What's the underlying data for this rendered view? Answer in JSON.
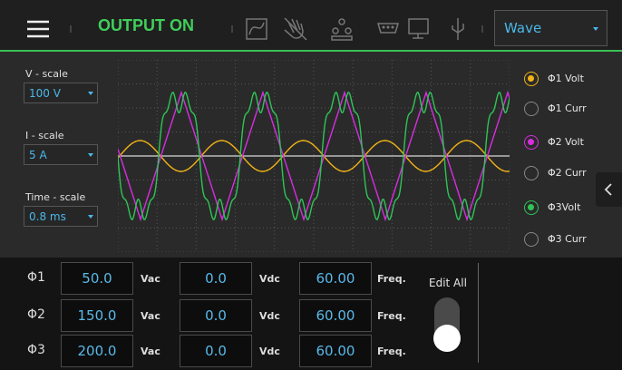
{
  "header": {
    "status": "OUTPUT ON",
    "view": "Wave"
  },
  "scales": [
    {
      "label": "V - scale",
      "value": "100 V"
    },
    {
      "label": "I - scale",
      "value": "5 A"
    },
    {
      "label": "Time - scale",
      "value": "0.8 ms"
    }
  ],
  "channels": [
    {
      "label": "Φ1 Volt",
      "selected": true,
      "color": "#f2b416"
    },
    {
      "label": "Φ1 Curr",
      "selected": false,
      "color": "#f2b416"
    },
    {
      "label": "Φ2 Volt",
      "selected": true,
      "color": "#d62ee0"
    },
    {
      "label": "Φ2 Curr",
      "selected": false,
      "color": "#d62ee0"
    },
    {
      "label": "Φ3Volt",
      "selected": true,
      "color": "#2fc455"
    },
    {
      "label": "Φ3 Curr",
      "selected": false,
      "color": "#2fc455"
    }
  ],
  "phases": [
    {
      "label": "Φ1",
      "ac": "50.0",
      "ac_unit": "Vac",
      "dc": "0.0",
      "dc_unit": "Vdc",
      "freq": "60.00",
      "freq_unit": "Freq."
    },
    {
      "label": "Φ2",
      "ac": "150.0",
      "ac_unit": "Vac",
      "dc": "0.0",
      "dc_unit": "Vdc",
      "freq": "60.00",
      "freq_unit": "Freq."
    },
    {
      "label": "Φ3",
      "ac": "200.0",
      "ac_unit": "Vac",
      "dc": "0.0",
      "dc_unit": "Vdc",
      "freq": "60.00",
      "freq_unit": "Freq."
    }
  ],
  "edit_all": "Edit All"
}
